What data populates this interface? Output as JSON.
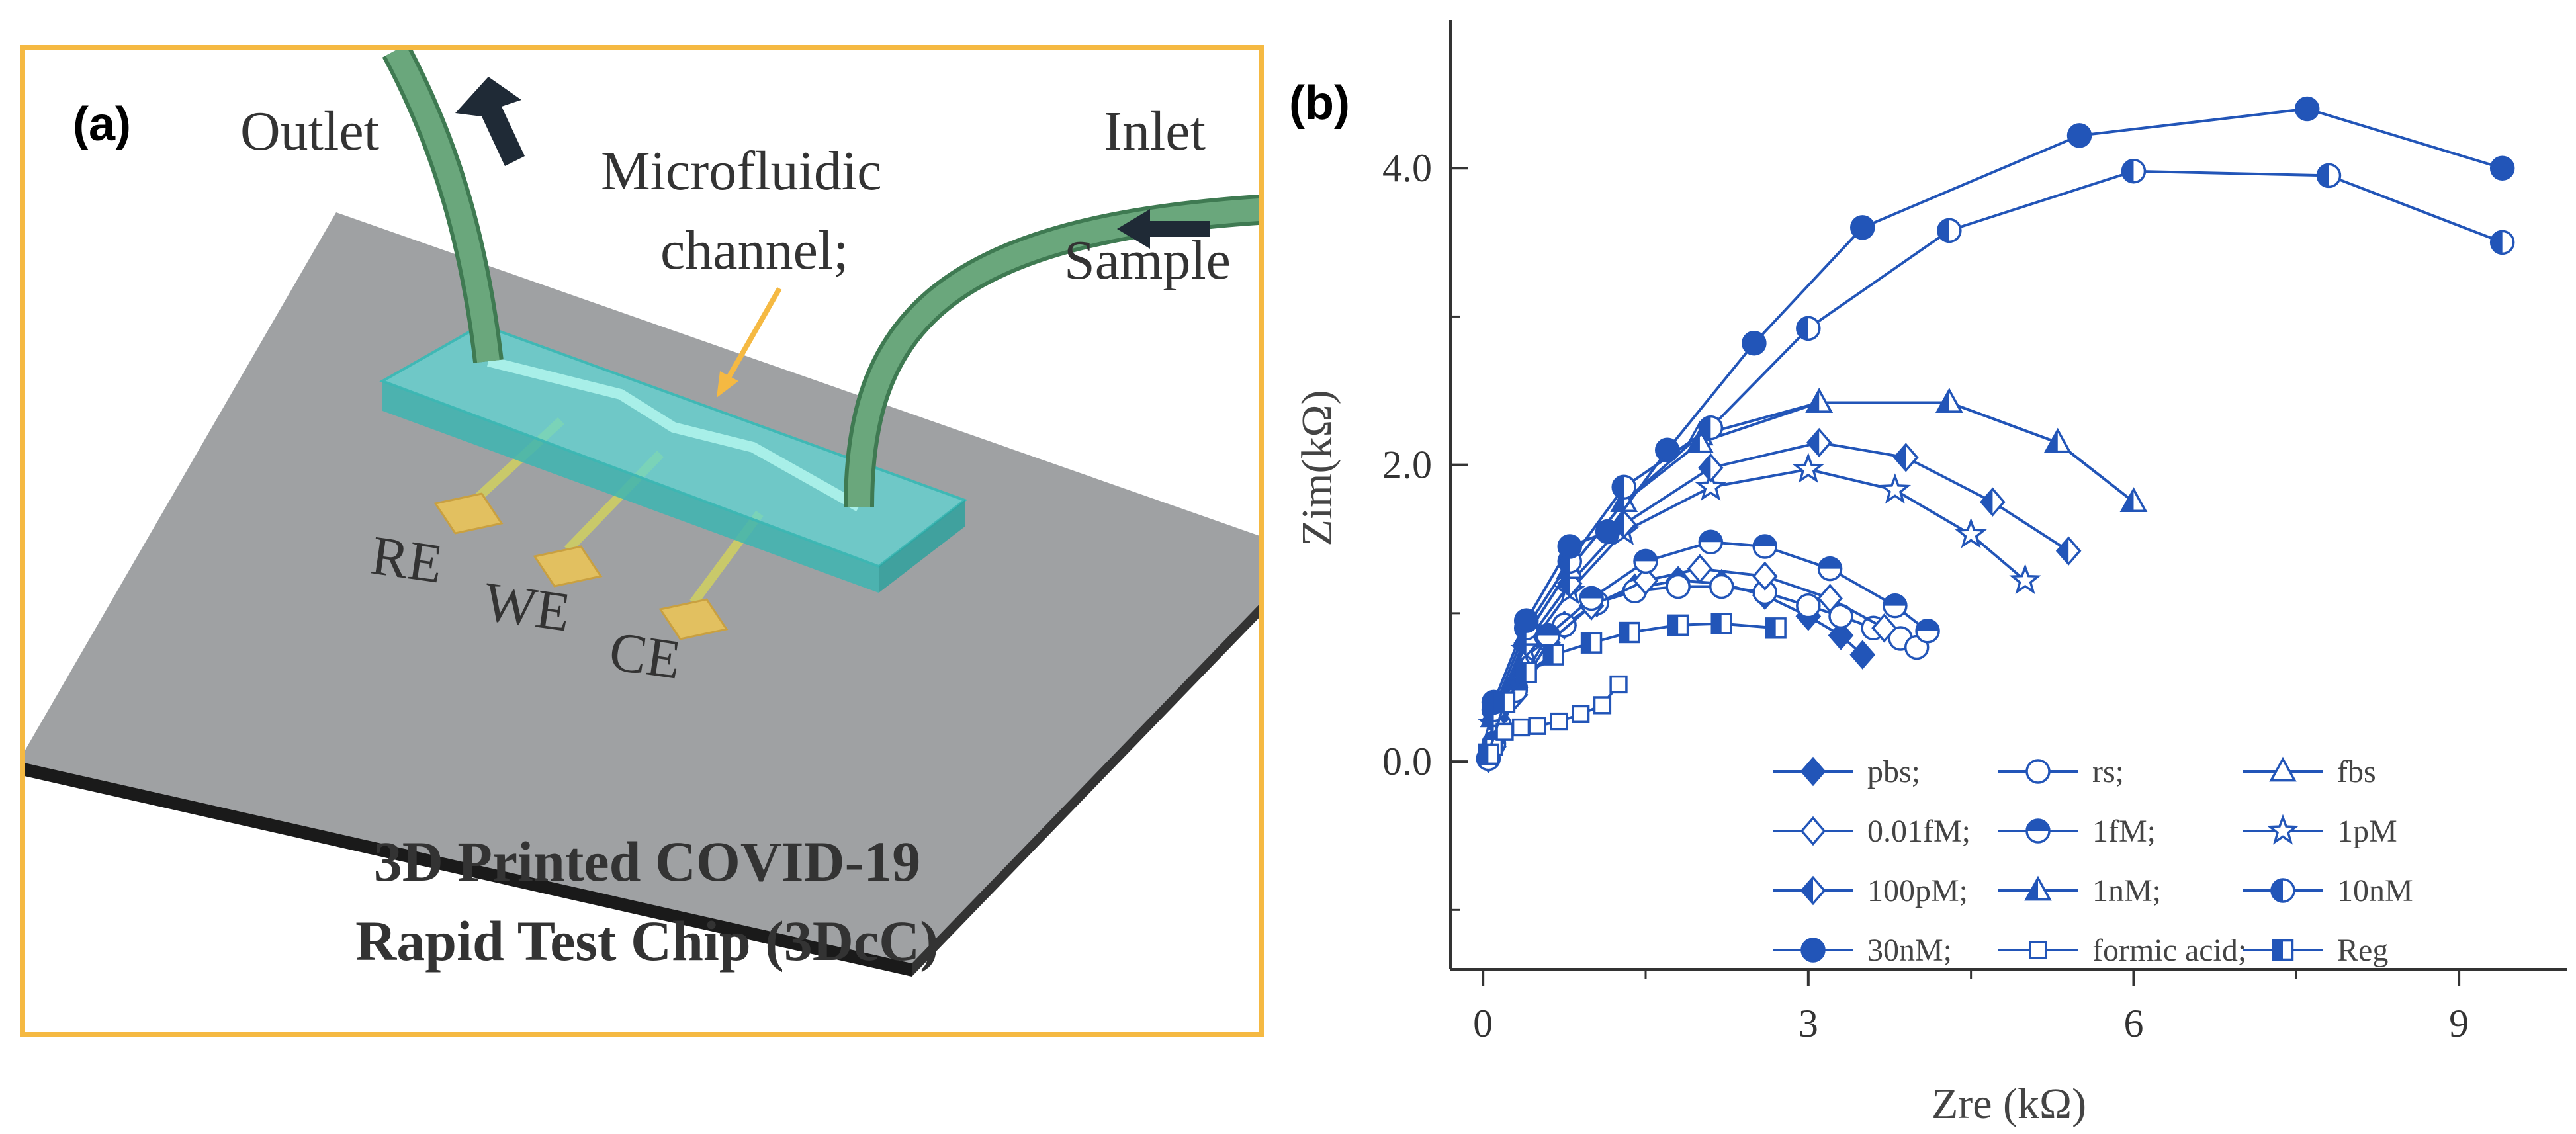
{
  "figure": {
    "panel_a": {
      "label": "(a)",
      "labels": {
        "outlet": "Outlet",
        "inlet": "Inlet",
        "sample": "Sample",
        "channel_line1": "Microfluidic",
        "channel_line2": "channel;",
        "re": "RE",
        "we": "WE",
        "ce": "CE"
      },
      "title_line1": "3D Printed COVID-19",
      "title_line2": "Rapid Test Chip (3DcC)",
      "colors": {
        "frame": "#f5b942",
        "chip": "#9fa1a3",
        "channel": "#5fd6d3",
        "tube": "#6aa77c",
        "electrode": "#e2c060"
      }
    },
    "panel_b": {
      "label": "(b)"
    }
  },
  "chart_data": {
    "type": "scatter",
    "xlabel": "Zre (kΩ)",
    "ylabel": "Zim(kΩ)",
    "xlim": [
      -0.3,
      10.0
    ],
    "ylim": [
      -1.4,
      5.0
    ],
    "xticks": [
      0,
      3,
      6,
      9
    ],
    "yticks": [
      0.0,
      2.0,
      4.0
    ],
    "ytick_labels": [
      "0.0",
      "2.0",
      "4.0"
    ],
    "color": "#2255b8",
    "series": [
      {
        "name": "pbs;",
        "marker": "diamond-filled",
        "x": [
          0.05,
          0.15,
          0.3,
          0.5,
          0.75,
          1.05,
          1.4,
          1.8,
          2.2,
          2.6,
          3.0,
          3.3,
          3.5
        ],
        "y": [
          0.02,
          0.25,
          0.5,
          0.72,
          0.92,
          1.07,
          1.17,
          1.22,
          1.2,
          1.12,
          0.98,
          0.85,
          0.72
        ]
      },
      {
        "name": "rs;",
        "marker": "circle-open",
        "x": [
          0.05,
          0.15,
          0.3,
          0.5,
          0.75,
          1.05,
          1.4,
          1.8,
          2.2,
          2.6,
          3.0,
          3.3,
          3.6,
          3.85,
          4.0
        ],
        "y": [
          0.02,
          0.25,
          0.5,
          0.72,
          0.92,
          1.07,
          1.15,
          1.18,
          1.18,
          1.14,
          1.05,
          0.98,
          0.9,
          0.83,
          0.77
        ]
      },
      {
        "name": "fbs",
        "marker": "triangle-open",
        "x": [
          0.1,
          0.4,
          0.8,
          1.3,
          2.0,
          3.1,
          4.3,
          5.3,
          6.0
        ],
        "y": [
          0.3,
          0.85,
          1.3,
          1.75,
          2.2,
          2.42,
          2.42,
          2.15,
          1.75
        ]
      },
      {
        "name": "0.01fM;",
        "marker": "diamond-open",
        "x": [
          0.1,
          0.3,
          0.6,
          1.0,
          1.5,
          2.0,
          2.6,
          3.2,
          3.7
        ],
        "y": [
          0.1,
          0.45,
          0.8,
          1.05,
          1.22,
          1.3,
          1.25,
          1.1,
          0.9
        ]
      },
      {
        "name": "1fM;",
        "marker": "circle-half-top",
        "x": [
          0.1,
          0.3,
          0.6,
          1.0,
          1.5,
          2.1,
          2.6,
          3.2,
          3.8,
          4.1
        ],
        "y": [
          0.12,
          0.48,
          0.85,
          1.1,
          1.35,
          1.48,
          1.45,
          1.3,
          1.05,
          0.88
        ]
      },
      {
        "name": "1pM",
        "marker": "star",
        "x": [
          0.1,
          0.4,
          0.8,
          1.3,
          2.1,
          3.0,
          3.8,
          4.5,
          5.0
        ],
        "y": [
          0.25,
          0.75,
          1.15,
          1.55,
          1.85,
          1.97,
          1.83,
          1.53,
          1.22
        ]
      },
      {
        "name": "100pM;",
        "marker": "diamond-half",
        "x": [
          0.1,
          0.4,
          0.8,
          1.3,
          2.1,
          3.1,
          3.9,
          4.7,
          5.4
        ],
        "y": [
          0.28,
          0.8,
          1.2,
          1.6,
          1.98,
          2.15,
          2.05,
          1.75,
          1.42
        ]
      },
      {
        "name": "1nM;",
        "marker": "triangle-half",
        "x": [
          0.1,
          0.4,
          0.8,
          1.3,
          2.0,
          3.1,
          4.3,
          5.3,
          6.0
        ],
        "y": [
          0.3,
          0.85,
          1.3,
          1.75,
          2.15,
          2.42,
          2.42,
          2.15,
          1.75
        ]
      },
      {
        "name": "10nM",
        "marker": "circle-half-left",
        "x": [
          0.1,
          0.4,
          0.8,
          1.3,
          2.1,
          3.0,
          4.3,
          6.0,
          7.8,
          9.4
        ],
        "y": [
          0.35,
          0.9,
          1.35,
          1.85,
          2.25,
          2.92,
          3.58,
          3.98,
          3.95,
          3.5
        ]
      },
      {
        "name": "30nM;",
        "marker": "circle-filled",
        "x": [
          0.1,
          0.4,
          0.8,
          1.15,
          1.7,
          2.5,
          3.5,
          5.5,
          7.6,
          9.4
        ],
        "y": [
          0.4,
          0.95,
          1.45,
          1.55,
          2.1,
          2.82,
          3.6,
          4.22,
          4.4,
          4.0
        ]
      },
      {
        "name": "formic acid;",
        "marker": "square-open",
        "x": [
          0.1,
          0.2,
          0.35,
          0.5,
          0.7,
          0.9,
          1.1,
          1.25
        ],
        "y": [
          0.1,
          0.2,
          0.23,
          0.24,
          0.27,
          0.32,
          0.38,
          0.52
        ]
      },
      {
        "name": "Reg",
        "marker": "square-half",
        "x": [
          0.05,
          0.2,
          0.4,
          0.65,
          1.0,
          1.35,
          1.8,
          2.2,
          2.7
        ],
        "y": [
          0.05,
          0.4,
          0.6,
          0.72,
          0.8,
          0.87,
          0.92,
          0.93,
          0.9
        ]
      }
    ],
    "legend": {
      "columns": 3,
      "position": "lower-right"
    }
  }
}
